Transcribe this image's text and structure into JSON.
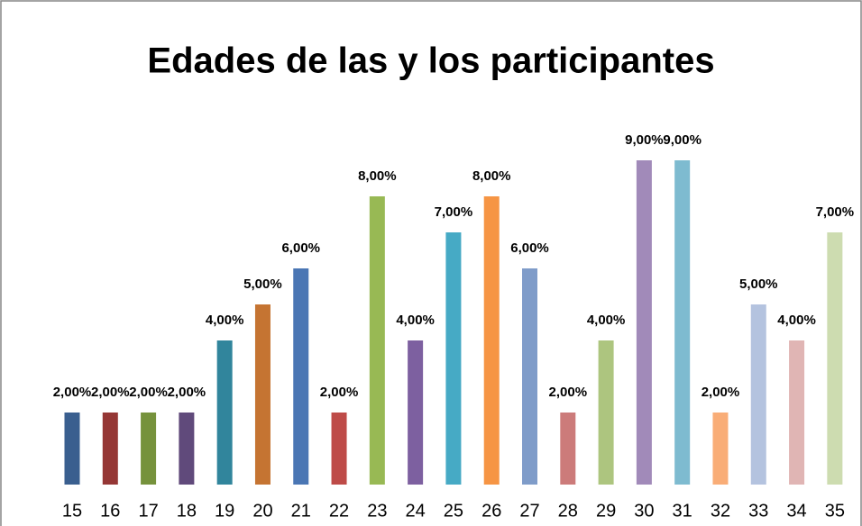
{
  "chart_data": {
    "type": "bar",
    "title": "Edades de las y los participantes",
    "categories": [
      "15",
      "16",
      "17",
      "18",
      "19",
      "20",
      "21",
      "22",
      "23",
      "24",
      "25",
      "26",
      "27",
      "28",
      "29",
      "30",
      "31",
      "32",
      "33",
      "34",
      "35"
    ],
    "values": [
      2,
      2,
      2,
      2,
      4,
      5,
      6,
      2,
      8,
      4,
      7,
      8,
      6,
      2,
      4,
      9,
      9,
      2,
      5,
      4,
      7
    ],
    "value_labels": [
      "2,00%",
      "2,00%",
      "2,00%",
      "2,00%",
      "4,00%",
      "5,00%",
      "6,00%",
      "2,00%",
      "8,00%",
      "4,00%",
      "7,00%",
      "8,00%",
      "6,00%",
      "2,00%",
      "4,00%",
      "9,00%",
      "9,00%",
      "2,00%",
      "5,00%",
      "4,00%",
      "7,00%"
    ],
    "colors": [
      "#3a5f8f",
      "#953735",
      "#76923c",
      "#604a7b",
      "#31859c",
      "#c57432",
      "#4a76b4",
      "#be4b48",
      "#98b954",
      "#7d60a0",
      "#46aac5",
      "#f69544",
      "#7f9cc9",
      "#cc7b7a",
      "#adc57f",
      "#a18ab9",
      "#7ebbd0",
      "#f9ad77",
      "#b4c3df",
      "#e0b5b4",
      "#cddcb0"
    ],
    "ylim": [
      0,
      10
    ]
  }
}
